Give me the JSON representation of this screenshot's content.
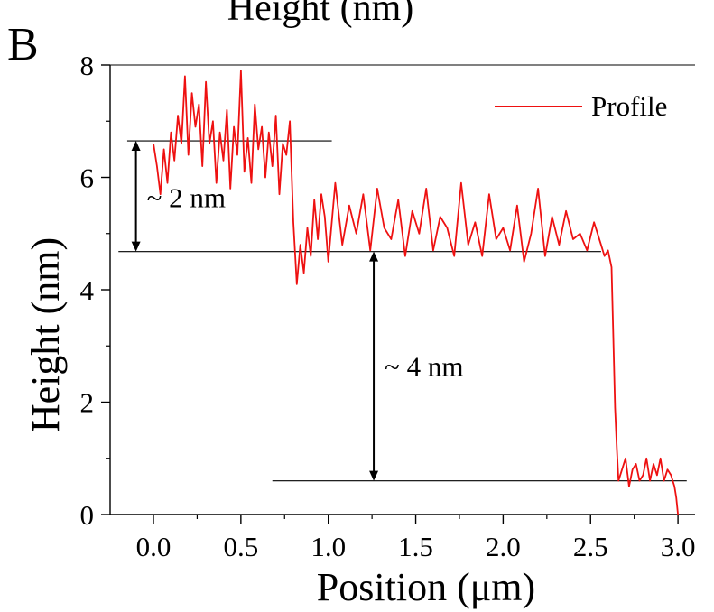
{
  "panel_label": "B",
  "top_title": "Height (nm)",
  "chart_data": {
    "type": "line",
    "title": "",
    "xlabel": "Position (μm)",
    "ylabel": "Height (nm)",
    "xlim": [
      -0.25,
      3.1
    ],
    "ylim": [
      0,
      8
    ],
    "xticks": [
      "0.0",
      "0.5",
      "1.0",
      "1.5",
      "2.0",
      "2.5",
      "3.0"
    ],
    "yticks": [
      "0",
      "2",
      "4",
      "6",
      "8"
    ],
    "legend": {
      "position": "top-right"
    },
    "series": [
      {
        "name": "Profile",
        "color": "#ee1111",
        "x": [
          0.0,
          0.02,
          0.04,
          0.06,
          0.08,
          0.1,
          0.12,
          0.14,
          0.16,
          0.18,
          0.2,
          0.22,
          0.24,
          0.26,
          0.28,
          0.3,
          0.32,
          0.34,
          0.36,
          0.38,
          0.4,
          0.42,
          0.44,
          0.46,
          0.48,
          0.5,
          0.52,
          0.54,
          0.56,
          0.58,
          0.6,
          0.62,
          0.64,
          0.66,
          0.68,
          0.7,
          0.72,
          0.74,
          0.76,
          0.78,
          0.8,
          0.82,
          0.84,
          0.86,
          0.88,
          0.9,
          0.92,
          0.94,
          0.96,
          0.98,
          1.0,
          1.04,
          1.08,
          1.12,
          1.16,
          1.2,
          1.24,
          1.28,
          1.32,
          1.36,
          1.4,
          1.44,
          1.48,
          1.52,
          1.56,
          1.6,
          1.64,
          1.68,
          1.72,
          1.76,
          1.8,
          1.84,
          1.88,
          1.92,
          1.96,
          2.0,
          2.04,
          2.08,
          2.12,
          2.16,
          2.2,
          2.24,
          2.28,
          2.32,
          2.36,
          2.4,
          2.44,
          2.48,
          2.52,
          2.56,
          2.58,
          2.6,
          2.62,
          2.63,
          2.64,
          2.65,
          2.66,
          2.68,
          2.7,
          2.72,
          2.74,
          2.76,
          2.78,
          2.8,
          2.82,
          2.84,
          2.86,
          2.88,
          2.9,
          2.92,
          2.94,
          2.96,
          2.98,
          2.99,
          3.0
        ],
        "values": [
          6.6,
          6.2,
          5.7,
          6.5,
          5.9,
          6.8,
          6.3,
          7.1,
          6.6,
          7.8,
          6.4,
          7.5,
          6.9,
          7.3,
          6.2,
          7.7,
          6.6,
          7.0,
          5.9,
          6.8,
          6.3,
          7.2,
          5.8,
          6.9,
          6.4,
          7.9,
          6.1,
          6.7,
          5.9,
          7.3,
          6.5,
          6.9,
          6.0,
          6.8,
          6.2,
          7.1,
          5.7,
          6.6,
          6.4,
          7.0,
          5.2,
          4.1,
          4.8,
          4.3,
          5.1,
          4.6,
          5.6,
          4.9,
          5.7,
          5.3,
          4.5,
          5.9,
          4.8,
          5.5,
          5.0,
          5.7,
          4.7,
          5.8,
          5.1,
          4.9,
          5.6,
          4.6,
          5.4,
          5.0,
          5.8,
          4.7,
          5.3,
          5.1,
          4.6,
          5.9,
          4.8,
          5.2,
          4.6,
          5.7,
          4.9,
          5.1,
          4.7,
          5.5,
          4.5,
          5.0,
          5.8,
          4.6,
          5.3,
          4.8,
          5.4,
          4.9,
          5.0,
          4.7,
          5.2,
          4.8,
          4.6,
          4.7,
          4.4,
          3.2,
          1.9,
          1.2,
          0.6,
          0.8,
          1.0,
          0.5,
          0.8,
          0.9,
          0.6,
          0.7,
          1.0,
          0.6,
          0.9,
          0.7,
          1.0,
          0.6,
          0.8,
          0.7,
          0.5,
          0.3,
          0.0
        ]
      }
    ],
    "reference_lines": [
      {
        "y": 6.65,
        "x_start": -0.15,
        "x_end": 1.02
      },
      {
        "y": 4.68,
        "x_start": -0.2,
        "x_end": 2.56
      },
      {
        "y": 0.6,
        "x_start": 0.68,
        "x_end": 3.05
      }
    ],
    "annotations": [
      {
        "text": "~ 2 nm",
        "x": -0.1,
        "y_from": 6.65,
        "y_to": 4.68
      },
      {
        "text": "~ 4 nm",
        "x": 1.26,
        "y_from": 4.68,
        "y_to": 0.6
      }
    ]
  }
}
